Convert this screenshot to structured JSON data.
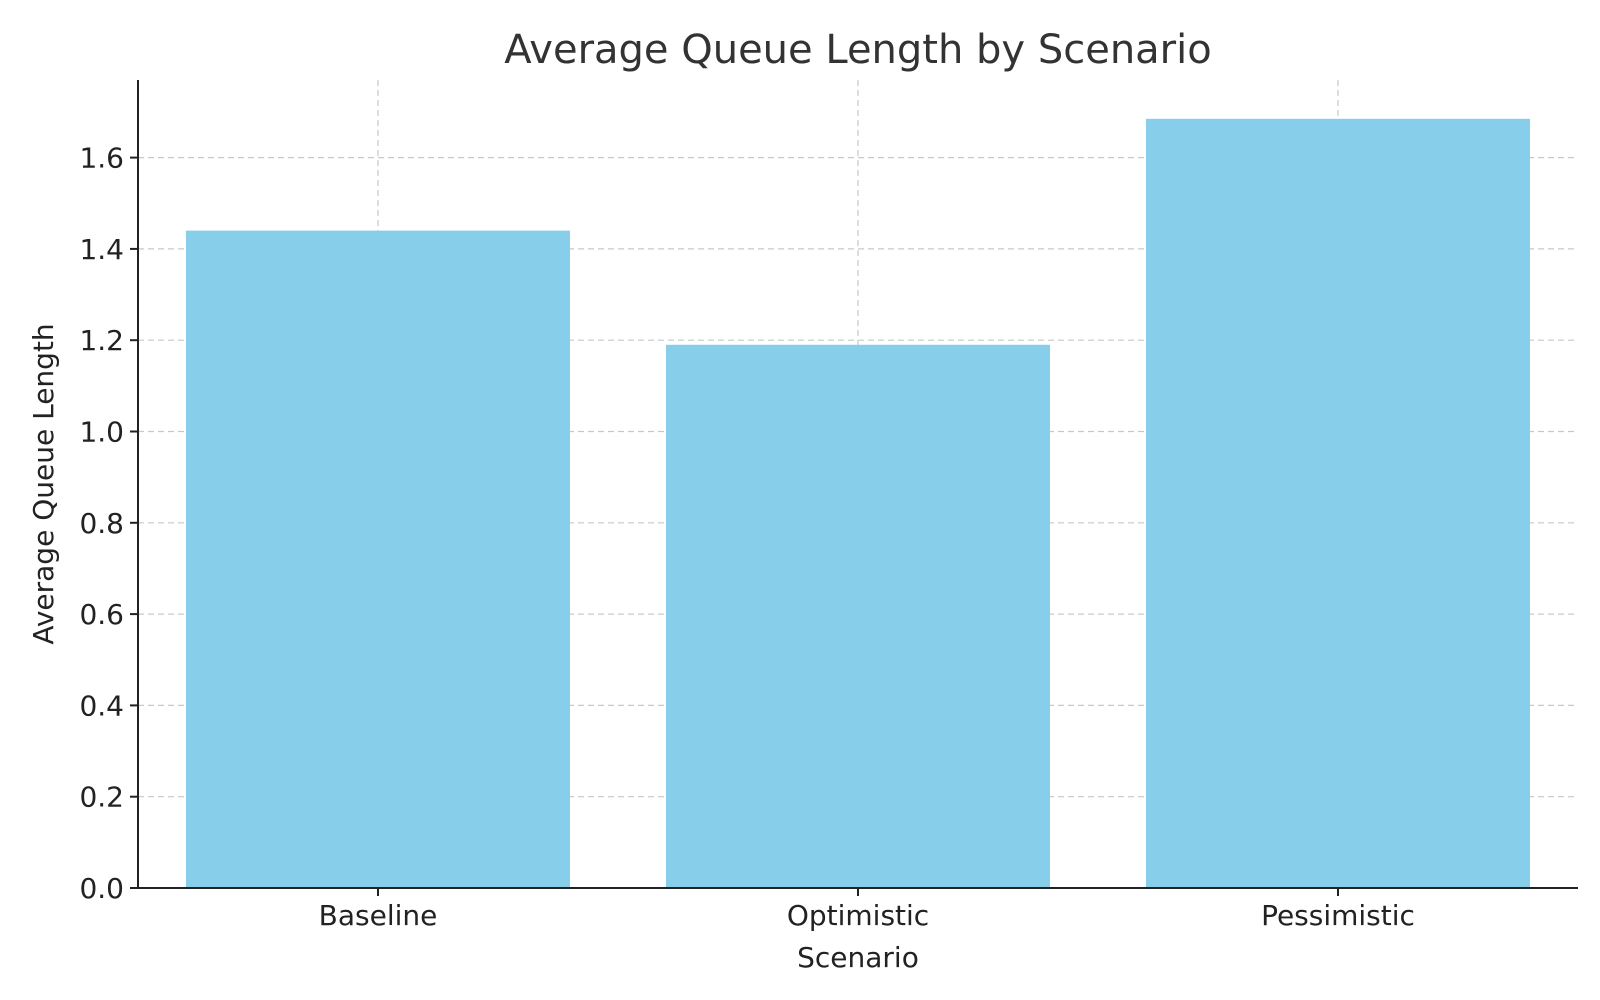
{
  "chart_data": {
    "type": "bar",
    "title": "Average Queue Length by Scenario",
    "xlabel": "Scenario",
    "ylabel": "Average Queue Length",
    "categories": [
      "Baseline",
      "Optimistic",
      "Pessimistic"
    ],
    "values": [
      1.44,
      1.19,
      1.685
    ],
    "ylim": [
      0,
      1.77
    ],
    "yticks": [
      0.0,
      0.2,
      0.4,
      0.6,
      0.8,
      1.0,
      1.2,
      1.4,
      1.6
    ],
    "ytick_labels": [
      "0.0",
      "0.2",
      "0.4",
      "0.6",
      "0.8",
      "1.0",
      "1.2",
      "1.4",
      "1.6"
    ],
    "grid": true,
    "legend": "none",
    "colors": {
      "bar": "#87CEEB",
      "grid": "#c8c8c8",
      "axis": "#222222",
      "title": "#333333"
    }
  }
}
